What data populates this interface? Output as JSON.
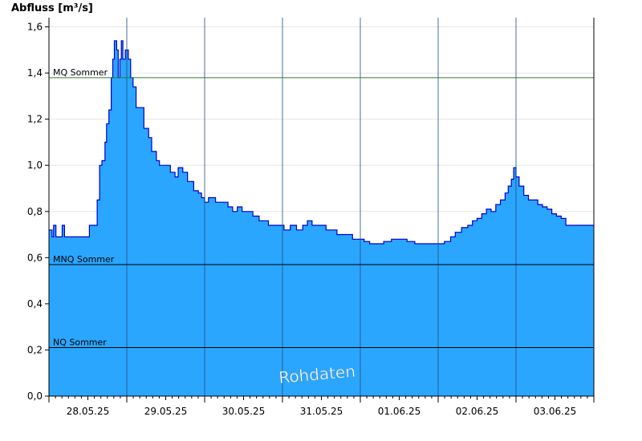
{
  "chart_data": {
    "type": "area",
    "ylabel": "Abfluss [m³/s]",
    "ylim": [
      0,
      1.64
    ],
    "yticks": [
      0,
      0.2,
      0.4,
      0.6,
      0.8,
      1.0,
      1.2,
      1.4,
      1.6
    ],
    "ytick_labels": [
      "0,0",
      "0,2",
      "0,4",
      "0,6",
      "0,8",
      "1,0",
      "1,2",
      "1,4",
      "1,6"
    ],
    "xlim": [
      0,
      7
    ],
    "xticks_labels": [
      "28.05.25",
      "29.05.25",
      "30.05.25",
      "31.05.25",
      "01.06.25",
      "02.06.25",
      "03.06.25"
    ],
    "fill_color": "#2aa6ff",
    "line_color": "#0000cc",
    "watermark": "Rohdaten",
    "reference_lines": [
      {
        "label": "MQ Sommer",
        "value": 1.38,
        "color": "#2e7d32"
      },
      {
        "label": "MNQ Sommer",
        "value": 0.57,
        "color": "#000000"
      },
      {
        "label": "NQ Sommer",
        "value": 0.21,
        "color": "#000000"
      }
    ],
    "series": [
      {
        "points": [
          [
            0.0,
            0.72
          ],
          [
            0.04,
            0.69
          ],
          [
            0.06,
            0.74
          ],
          [
            0.09,
            0.69
          ],
          [
            0.14,
            0.69
          ],
          [
            0.17,
            0.74
          ],
          [
            0.2,
            0.69
          ],
          [
            0.5,
            0.69
          ],
          [
            0.52,
            0.74
          ],
          [
            0.58,
            0.74
          ],
          [
            0.62,
            0.85
          ],
          [
            0.65,
            1.0
          ],
          [
            0.68,
            1.02
          ],
          [
            0.72,
            1.1
          ],
          [
            0.74,
            1.18
          ],
          [
            0.77,
            1.24
          ],
          [
            0.8,
            1.38
          ],
          [
            0.82,
            1.46
          ],
          [
            0.84,
            1.54
          ],
          [
            0.87,
            1.5
          ],
          [
            0.89,
            1.38
          ],
          [
            0.91,
            1.46
          ],
          [
            0.93,
            1.54
          ],
          [
            0.95,
            1.46
          ],
          [
            0.98,
            1.5
          ],
          [
            1.02,
            1.46
          ],
          [
            1.05,
            1.38
          ],
          [
            1.08,
            1.34
          ],
          [
            1.12,
            1.25
          ],
          [
            1.18,
            1.25
          ],
          [
            1.22,
            1.16
          ],
          [
            1.28,
            1.12
          ],
          [
            1.32,
            1.06
          ],
          [
            1.38,
            1.02
          ],
          [
            1.42,
            1.0
          ],
          [
            1.5,
            1.0
          ],
          [
            1.56,
            0.97
          ],
          [
            1.62,
            0.95
          ],
          [
            1.66,
            0.99
          ],
          [
            1.72,
            0.97
          ],
          [
            1.78,
            0.93
          ],
          [
            1.82,
            0.93
          ],
          [
            1.86,
            0.89
          ],
          [
            1.92,
            0.88
          ],
          [
            1.96,
            0.86
          ],
          [
            2.0,
            0.84
          ],
          [
            2.05,
            0.86
          ],
          [
            2.1,
            0.86
          ],
          [
            2.14,
            0.84
          ],
          [
            2.22,
            0.84
          ],
          [
            2.3,
            0.82
          ],
          [
            2.36,
            0.8
          ],
          [
            2.42,
            0.82
          ],
          [
            2.48,
            0.8
          ],
          [
            2.56,
            0.8
          ],
          [
            2.62,
            0.78
          ],
          [
            2.7,
            0.76
          ],
          [
            2.76,
            0.76
          ],
          [
            2.82,
            0.74
          ],
          [
            2.9,
            0.74
          ],
          [
            2.96,
            0.74
          ],
          [
            3.02,
            0.72
          ],
          [
            3.1,
            0.74
          ],
          [
            3.18,
            0.72
          ],
          [
            3.26,
            0.74
          ],
          [
            3.32,
            0.76
          ],
          [
            3.38,
            0.74
          ],
          [
            3.46,
            0.74
          ],
          [
            3.56,
            0.72
          ],
          [
            3.64,
            0.72
          ],
          [
            3.7,
            0.7
          ],
          [
            3.8,
            0.7
          ],
          [
            3.9,
            0.68
          ],
          [
            3.98,
            0.68
          ],
          [
            4.05,
            0.67
          ],
          [
            4.12,
            0.66
          ],
          [
            4.2,
            0.66
          ],
          [
            4.3,
            0.67
          ],
          [
            4.4,
            0.68
          ],
          [
            4.5,
            0.68
          ],
          [
            4.6,
            0.67
          ],
          [
            4.7,
            0.66
          ],
          [
            4.8,
            0.66
          ],
          [
            4.9,
            0.66
          ],
          [
            5.0,
            0.66
          ],
          [
            5.08,
            0.67
          ],
          [
            5.16,
            0.69
          ],
          [
            5.22,
            0.71
          ],
          [
            5.3,
            0.73
          ],
          [
            5.38,
            0.74
          ],
          [
            5.44,
            0.76
          ],
          [
            5.5,
            0.77
          ],
          [
            5.56,
            0.79
          ],
          [
            5.62,
            0.81
          ],
          [
            5.68,
            0.8
          ],
          [
            5.74,
            0.83
          ],
          [
            5.8,
            0.85
          ],
          [
            5.86,
            0.88
          ],
          [
            5.9,
            0.91
          ],
          [
            5.94,
            0.94
          ],
          [
            5.97,
            0.99
          ],
          [
            6.0,
            0.95
          ],
          [
            6.04,
            0.91
          ],
          [
            6.1,
            0.87
          ],
          [
            6.16,
            0.85
          ],
          [
            6.22,
            0.85
          ],
          [
            6.28,
            0.83
          ],
          [
            6.34,
            0.82
          ],
          [
            6.4,
            0.81
          ],
          [
            6.46,
            0.79
          ],
          [
            6.52,
            0.78
          ],
          [
            6.58,
            0.77
          ],
          [
            6.64,
            0.74
          ],
          [
            6.7,
            0.74
          ],
          [
            6.8,
            0.74
          ],
          [
            6.9,
            0.74
          ],
          [
            7.0,
            0.74
          ]
        ]
      }
    ]
  }
}
